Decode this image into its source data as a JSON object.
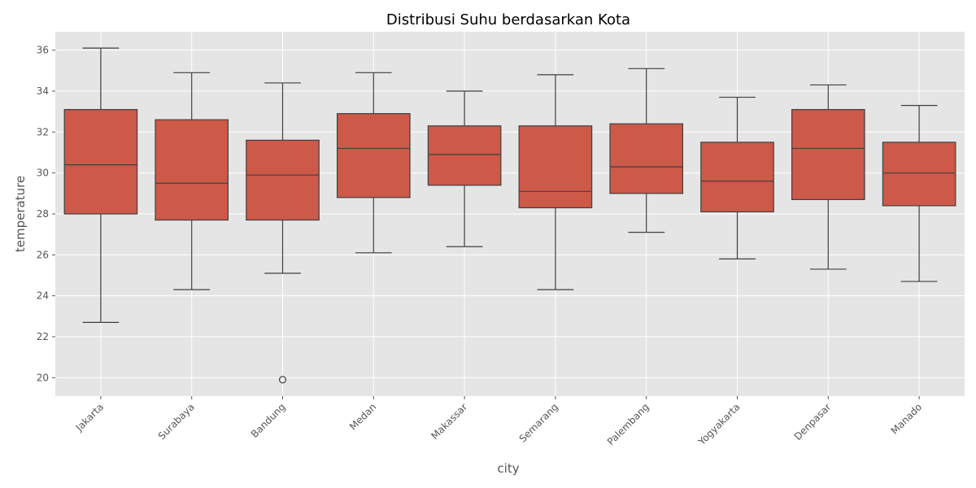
{
  "chart_data": {
    "type": "box",
    "title": "Distribusi Suhu berdasarkan Kota",
    "xlabel": "city",
    "ylabel": "temperature",
    "ylim": [
      19.1,
      36.9
    ],
    "yticks": [
      20,
      22,
      24,
      26,
      28,
      30,
      32,
      34,
      36
    ],
    "grid": true,
    "colors": {
      "box": "#CD5948",
      "line": "#404040",
      "background": "#E5E5E5",
      "grid": "#FFFFFF"
    },
    "categories": [
      "Jakarta",
      "Surabaya",
      "Bandung",
      "Medan",
      "Makassar",
      "Semarang",
      "Palembang",
      "Yogyakarta",
      "Denpasar",
      "Manado"
    ],
    "boxes": [
      {
        "min": 22.7,
        "q1": 28.0,
        "median": 30.4,
        "q3": 33.1,
        "max": 36.1,
        "outliers": []
      },
      {
        "min": 24.3,
        "q1": 27.7,
        "median": 29.5,
        "q3": 32.6,
        "max": 34.9,
        "outliers": []
      },
      {
        "min": 25.1,
        "q1": 27.7,
        "median": 29.9,
        "q3": 31.6,
        "max": 34.4,
        "outliers": [
          19.9
        ]
      },
      {
        "min": 26.1,
        "q1": 28.8,
        "median": 31.2,
        "q3": 32.9,
        "max": 34.9,
        "outliers": []
      },
      {
        "min": 26.4,
        "q1": 29.4,
        "median": 30.9,
        "q3": 32.3,
        "max": 34.0,
        "outliers": []
      },
      {
        "min": 24.3,
        "q1": 28.3,
        "median": 29.1,
        "q3": 32.3,
        "max": 34.8,
        "outliers": []
      },
      {
        "min": 27.1,
        "q1": 29.0,
        "median": 30.3,
        "q3": 32.4,
        "max": 35.1,
        "outliers": []
      },
      {
        "min": 25.8,
        "q1": 28.1,
        "median": 29.6,
        "q3": 31.5,
        "max": 33.7,
        "outliers": []
      },
      {
        "min": 25.3,
        "q1": 28.7,
        "median": 31.2,
        "q3": 33.1,
        "max": 34.3,
        "outliers": []
      },
      {
        "min": 24.7,
        "q1": 28.4,
        "median": 30.0,
        "q3": 31.5,
        "max": 33.3,
        "outliers": []
      }
    ]
  }
}
